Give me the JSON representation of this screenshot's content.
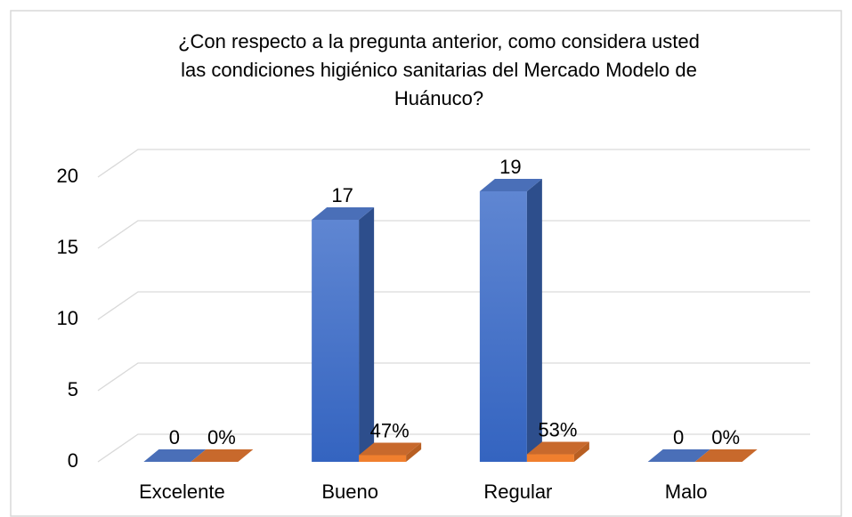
{
  "chart_data": {
    "type": "bar3d",
    "title": [
      "¿Con respecto a la pregunta anterior, como considera usted",
      "las condiciones higiénico sanitarias del Mercado Modelo de",
      "Huánuco?"
    ],
    "categories": [
      "Excelente",
      "Bueno",
      "Regular",
      "Malo"
    ],
    "series": [
      {
        "color": "#4472c4",
        "values": [
          0,
          17,
          19,
          0
        ],
        "value_labels": [
          "0",
          "17",
          "19",
          "0"
        ]
      },
      {
        "color": "#ed7d31",
        "values": [
          0,
          0.47,
          0.53,
          0
        ],
        "value_labels": [
          "0%",
          "47%",
          "53%",
          "0%"
        ]
      }
    ],
    "ylim": [
      0,
      20
    ],
    "yticks": [
      0,
      5,
      10,
      15,
      20
    ],
    "grid": true
  }
}
